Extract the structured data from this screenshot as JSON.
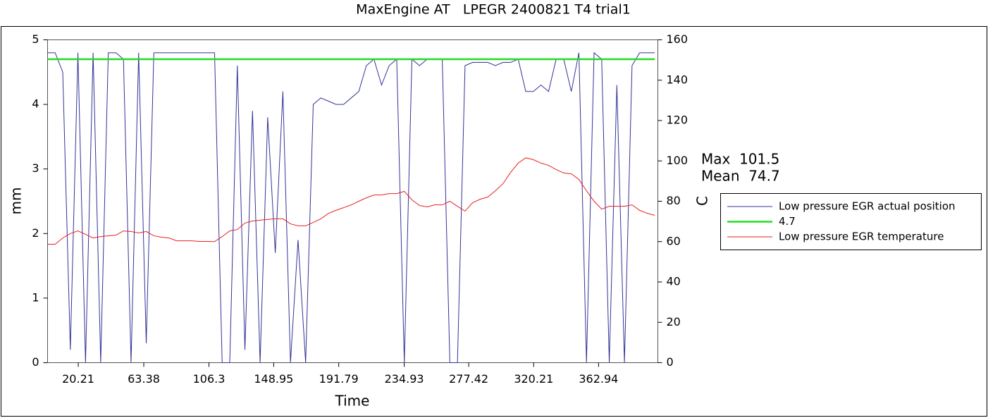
{
  "chart_data": {
    "type": "line",
    "title": "MaxEngine AT   LPEGR 2400821 T4 trial1",
    "xlabel": "Time",
    "ylabel": "mm",
    "y2label": "C",
    "annotations": [
      "Max  101.5",
      "Mean  74.7"
    ],
    "x": [
      0,
      5,
      10,
      15,
      20,
      25,
      30,
      35,
      40,
      45,
      50,
      55,
      60,
      65,
      70,
      75,
      80,
      85,
      90,
      95,
      100,
      105,
      110,
      115,
      120,
      125,
      130,
      135,
      140,
      145,
      150,
      155,
      160,
      165,
      170,
      175,
      180,
      185,
      190,
      195,
      200,
      205,
      210,
      215,
      220,
      225,
      230,
      235,
      240,
      245,
      250,
      255,
      260,
      265,
      270,
      275,
      280,
      285,
      290,
      295,
      300,
      305,
      310,
      315,
      320,
      325,
      330,
      335,
      340,
      345,
      350,
      355,
      360,
      365,
      370,
      375,
      380,
      385,
      390,
      395,
      400
    ],
    "series": [
      {
        "name": "Low pressure EGR actual position",
        "color": "#333399",
        "values": [
          4.8,
          4.8,
          4.5,
          0.2,
          4.8,
          0,
          4.8,
          0,
          4.8,
          4.8,
          4.7,
          0,
          4.8,
          0.3,
          4.8,
          4.8,
          4.8,
          4.8,
          4.8,
          4.8,
          4.8,
          4.8,
          4.8,
          0,
          0,
          4.6,
          0.2,
          3.9,
          0,
          3.8,
          1.7,
          4.2,
          0,
          1.9,
          0,
          4.0,
          4.1,
          4.05,
          4.0,
          4.0,
          4.1,
          4.2,
          4.6,
          4.7,
          4.3,
          4.6,
          4.7,
          0,
          4.7,
          4.6,
          4.7,
          4.7,
          4.7,
          0,
          0,
          4.6,
          4.65,
          4.65,
          4.65,
          4.6,
          4.65,
          4.65,
          4.7,
          4.2,
          4.2,
          4.3,
          4.2,
          4.7,
          4.7,
          4.2,
          4.8,
          0,
          4.8,
          4.7,
          0,
          4.3,
          0,
          4.6,
          4.8,
          4.8,
          4.8
        ]
      },
      {
        "name": "4.7",
        "color": "#22dd22",
        "x": [
          0,
          400
        ],
        "values": [
          4.7,
          4.7
        ]
      },
      {
        "name": "Low pressure EGR temperature",
        "color": "#e82020",
        "axis": "y2",
        "values": [
          58.7,
          58.7,
          61.8,
          64,
          65.3,
          63.6,
          61.8,
          62.5,
          62.9,
          63.2,
          65.3,
          65,
          64.3,
          65,
          62.9,
          62.2,
          61.8,
          60.4,
          60.4,
          60.4,
          60.1,
          60.1,
          60,
          62.5,
          65.3,
          66,
          69.2,
          70.2,
          70.6,
          71,
          71.3,
          71.3,
          68.8,
          67.8,
          67.8,
          69.5,
          71.3,
          74,
          75.5,
          76.8,
          78.2,
          80,
          81.7,
          83.1,
          83.1,
          83.8,
          83.8,
          84.9,
          80.7,
          77.9,
          77.2,
          78.2,
          78.2,
          80,
          77.5,
          75.1,
          79.3,
          81,
          82.1,
          85.2,
          88.7,
          94.3,
          98.9,
          101.5,
          100.6,
          98.9,
          97.8,
          95.7,
          94,
          93.6,
          90.8,
          85.2,
          80,
          76.1,
          77.5,
          77.5,
          77.5,
          78.2,
          75.5,
          74,
          73
        ]
      }
    ],
    "xlim": [
      0,
      402
    ],
    "xticks": [
      20.21,
      63.38,
      106.3,
      148.95,
      191.79,
      234.93,
      277.42,
      320.21,
      362.94
    ],
    "ylim": [
      0,
      5
    ],
    "yticks": [
      0,
      1,
      2,
      3,
      4,
      5
    ],
    "y2lim": [
      0,
      160
    ],
    "y2ticks": [
      0,
      20,
      40,
      60,
      80,
      100,
      120,
      140,
      160
    ],
    "grid": false
  }
}
